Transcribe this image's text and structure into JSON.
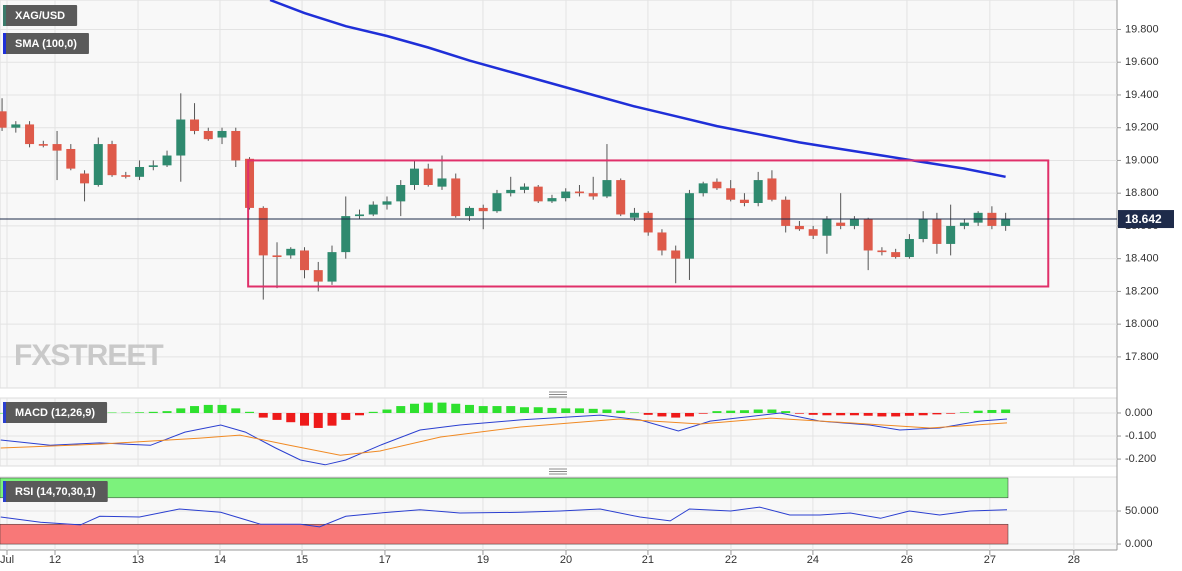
{
  "chart_data": [
    {
      "type": "candlestick",
      "title": "XAG/USD",
      "watermark": "FXSTREET",
      "grid": true,
      "up_color": "#2f8a6f",
      "down_color": "#de5a4a",
      "x": [
        0,
        1,
        2,
        3,
        4,
        5,
        6,
        7,
        8,
        9,
        10,
        11,
        12,
        13,
        14,
        15,
        16,
        17,
        18,
        19,
        20,
        21,
        22,
        23,
        24,
        25,
        26,
        27,
        28,
        29,
        30,
        31,
        32,
        33,
        34,
        35,
        36,
        37,
        38,
        39,
        40,
        41,
        42,
        43,
        44,
        45,
        46,
        47,
        48,
        49,
        50,
        51,
        52,
        53,
        54,
        55,
        56,
        57,
        58,
        59,
        60,
        61,
        62,
        63,
        64,
        65,
        66,
        67,
        68,
        69,
        70,
        71,
        72,
        73
      ],
      "open": [
        19.3,
        19.2,
        19.22,
        19.1,
        19.1,
        19.07,
        18.92,
        18.85,
        19.1,
        18.91,
        18.9,
        18.96,
        18.97,
        19.03,
        19.25,
        19.18,
        19.14,
        19.18,
        19.01,
        18.71,
        18.42,
        18.42,
        18.45,
        18.33,
        18.26,
        18.44,
        18.66,
        18.67,
        18.73,
        18.75,
        18.85,
        18.95,
        18.84,
        18.89,
        18.66,
        18.71,
        18.69,
        18.8,
        18.82,
        18.84,
        18.75,
        18.77,
        18.81,
        18.8,
        18.78,
        18.88,
        18.65,
        18.68,
        18.56,
        18.45,
        18.4,
        18.8,
        18.87,
        18.83,
        18.76,
        18.74,
        18.89,
        18.76,
        18.6,
        18.58,
        18.54,
        18.62,
        18.6,
        18.64,
        18.45,
        18.44,
        18.41,
        18.52,
        18.64,
        18.49,
        18.6,
        18.62,
        18.68,
        18.6
      ],
      "high": [
        19.38,
        19.24,
        19.24,
        19.12,
        19.18,
        19.1,
        18.94,
        19.14,
        19.12,
        18.93,
        19.0,
        19.0,
        19.06,
        19.41,
        19.35,
        19.2,
        19.2,
        19.2,
        19.02,
        18.72,
        18.5,
        18.47,
        18.47,
        18.38,
        18.48,
        18.78,
        18.7,
        18.75,
        18.78,
        18.88,
        19.0,
        18.98,
        19.03,
        18.92,
        18.72,
        18.73,
        18.82,
        18.9,
        18.86,
        18.85,
        18.79,
        18.83,
        18.85,
        18.9,
        19.1,
        18.89,
        18.71,
        18.69,
        18.58,
        18.48,
        18.82,
        18.87,
        18.89,
        18.88,
        18.8,
        18.93,
        18.94,
        18.78,
        18.63,
        18.6,
        18.66,
        18.8,
        18.66,
        18.65,
        18.47,
        18.46,
        18.55,
        18.69,
        18.68,
        18.73,
        18.64,
        18.69,
        18.72,
        18.68
      ],
      "low": [
        19.18,
        19.17,
        19.08,
        19.08,
        18.88,
        18.94,
        18.75,
        18.84,
        18.9,
        18.89,
        18.88,
        18.94,
        18.96,
        18.87,
        19.16,
        19.12,
        19.1,
        18.96,
        18.7,
        18.15,
        18.22,
        18.4,
        18.28,
        18.2,
        18.24,
        18.4,
        18.64,
        18.66,
        18.7,
        18.66,
        18.82,
        18.84,
        18.82,
        18.65,
        18.63,
        18.58,
        18.68,
        18.78,
        18.8,
        18.74,
        18.74,
        18.75,
        18.78,
        18.76,
        18.77,
        18.66,
        18.63,
        18.54,
        18.42,
        18.25,
        18.27,
        18.78,
        18.82,
        18.75,
        18.72,
        18.72,
        18.75,
        18.56,
        18.57,
        18.52,
        18.43,
        18.58,
        18.58,
        18.33,
        18.42,
        18.4,
        18.4,
        18.5,
        18.43,
        18.42,
        18.58,
        18.6,
        18.58,
        18.57
      ],
      "close": [
        19.2,
        19.22,
        19.1,
        19.09,
        19.06,
        18.95,
        18.86,
        19.1,
        18.91,
        18.9,
        18.96,
        18.97,
        19.03,
        19.25,
        19.18,
        19.13,
        19.18,
        19.0,
        18.71,
        18.42,
        18.41,
        18.46,
        18.33,
        18.26,
        18.44,
        18.66,
        18.67,
        18.73,
        18.75,
        18.85,
        18.95,
        18.85,
        18.89,
        18.66,
        18.71,
        18.69,
        18.8,
        18.82,
        18.84,
        18.75,
        18.77,
        18.81,
        18.8,
        18.78,
        18.88,
        18.67,
        18.68,
        18.56,
        18.45,
        18.4,
        18.8,
        18.86,
        18.83,
        18.76,
        18.74,
        18.88,
        18.76,
        18.6,
        18.58,
        18.54,
        18.64,
        18.6,
        18.64,
        18.45,
        18.44,
        18.41,
        18.52,
        18.64,
        18.49,
        18.6,
        18.62,
        18.68,
        18.6,
        18.64
      ],
      "overlays": [
        {
          "name": "SMA (100,0)",
          "color": "#1f2fd8",
          "x": [
            19.5,
            22,
            25,
            28,
            31,
            34,
            37,
            40,
            43,
            46,
            49,
            52,
            55,
            58,
            61,
            64,
            67,
            70,
            73
          ],
          "values": [
            19.98,
            19.9,
            19.82,
            19.76,
            19.69,
            19.61,
            19.54,
            19.47,
            19.4,
            19.33,
            19.27,
            19.21,
            19.16,
            19.11,
            19.07,
            19.03,
            18.99,
            18.95,
            18.9
          ]
        }
      ],
      "range_box": {
        "x": [
          17.9,
          76.1
        ],
        "y": [
          18.23,
          19.0
        ],
        "color": "#e0306a"
      },
      "last_price": 18.642,
      "xlim": [
        -0.15,
        81.1
      ],
      "ylim": [
        17.61,
        19.98
      ],
      "yticks": [
        {
          "value": 17.8,
          "label": "17.800"
        },
        {
          "value": 18.0,
          "label": "18.000"
        },
        {
          "value": 18.2,
          "label": "18.200"
        },
        {
          "value": 18.4,
          "label": "18.400"
        },
        {
          "value": 18.6,
          "label": "18.600"
        },
        {
          "value": 18.8,
          "label": "18.800"
        },
        {
          "value": 19.0,
          "label": "19.000"
        },
        {
          "value": 19.2,
          "label": "19.200"
        },
        {
          "value": 19.4,
          "label": "19.400"
        },
        {
          "value": 19.6,
          "label": "19.600"
        },
        {
          "value": 19.8,
          "label": "19.800"
        }
      ],
      "xticks": [
        {
          "value": 0.36,
          "label": "Jul"
        },
        {
          "value": 3.85,
          "label": "12"
        },
        {
          "value": 9.89,
          "label": "13"
        },
        {
          "value": 15.85,
          "label": "14"
        },
        {
          "value": 21.82,
          "label": "15"
        },
        {
          "value": 27.85,
          "label": "17"
        },
        {
          "value": 34.98,
          "label": "19"
        },
        {
          "value": 41.02,
          "label": "20"
        },
        {
          "value": 46.98,
          "label": "21"
        },
        {
          "value": 53.02,
          "label": "22"
        },
        {
          "value": 58.98,
          "label": "24"
        },
        {
          "value": 65.82,
          "label": "26"
        },
        {
          "value": 71.85,
          "label": "27"
        },
        {
          "value": 77.96,
          "label": "28"
        }
      ]
    },
    {
      "type": "macd",
      "title": "MACD (12,26,9)",
      "grid": true,
      "up_color": "#2ee02e",
      "down_color": "#ee1a1a",
      "histogram": [
        0,
        0,
        0,
        0,
        0,
        0,
        0,
        0,
        0.002,
        0.002,
        0.003,
        0.005,
        0.008,
        0.02,
        0.03,
        0.035,
        0.035,
        0.02,
        0.005,
        -0.02,
        -0.03,
        -0.04,
        -0.055,
        -0.065,
        -0.055,
        -0.03,
        -0.01,
        0.005,
        0.015,
        0.03,
        0.04,
        0.045,
        0.045,
        0.04,
        0.035,
        0.03,
        0.03,
        0.03,
        0.025,
        0.025,
        0.022,
        0.02,
        0.02,
        0.018,
        0.015,
        0.01,
        0.002,
        -0.008,
        -0.015,
        -0.02,
        -0.015,
        -0.003,
        0.008,
        0.01,
        0.012,
        0.015,
        0.015,
        0.008,
        -0.003,
        -0.008,
        -0.01,
        -0.01,
        -0.01,
        -0.012,
        -0.015,
        -0.015,
        -0.012,
        -0.01,
        -0.006,
        -0.003,
        0.003,
        0.01,
        0.013,
        0.015
      ],
      "lines": [
        {
          "color": "#2b3fd0",
          "x": [
            -0.1,
            3.5,
            7.1,
            10.8,
            13.3,
            15.9,
            17.7,
            19.9,
            21.7,
            23.5,
            25,
            27.5,
            30.4,
            33.3,
            37.7,
            43.5,
            46.4,
            49.2,
            51.5,
            56.6,
            59.5,
            63.1,
            65.3,
            68.2,
            71.1,
            73.1
          ],
          "values": [
            -0.117,
            -0.14,
            -0.13,
            -0.14,
            -0.083,
            -0.052,
            -0.083,
            -0.152,
            -0.204,
            -0.225,
            -0.204,
            -0.14,
            -0.074,
            -0.052,
            -0.03,
            -0.009,
            -0.03,
            -0.078,
            -0.035,
            0,
            -0.035,
            -0.052,
            -0.074,
            -0.065,
            -0.035,
            -0.026
          ]
        },
        {
          "color": "#f08a24",
          "x": [
            -0.1,
            7.1,
            14.4,
            17.3,
            20.9,
            24.6,
            27.5,
            31.9,
            37.7,
            44.9,
            50.8,
            55.9,
            61.7,
            67.5,
            73.1
          ],
          "values": [
            -0.152,
            -0.135,
            -0.109,
            -0.096,
            -0.14,
            -0.183,
            -0.165,
            -0.104,
            -0.061,
            -0.026,
            -0.048,
            -0.022,
            -0.043,
            -0.065,
            -0.043
          ]
        }
      ],
      "ylim": [
        -0.23,
        0.065
      ],
      "yticks": [
        {
          "value": 0,
          "label": "0.000"
        },
        {
          "value": -0.1,
          "label": "-0.100"
        },
        {
          "value": -0.2,
          "label": "-0.200"
        }
      ]
    },
    {
      "type": "rsi",
      "title": "RSI (14,70,30,1)",
      "grid": true,
      "bands": [
        {
          "from": 70,
          "to": 100,
          "color": "#7cf27c"
        },
        {
          "from": 0,
          "to": 30,
          "color": "#f87878"
        }
      ],
      "lines": [
        {
          "color": "#2b3fd0",
          "x": [
            -0.1,
            2.8,
            5.7,
            7.1,
            10,
            12.9,
            15.9,
            18.8,
            21.7,
            23.1,
            25,
            27.5,
            30.4,
            33.3,
            37.7,
            40.6,
            43.5,
            46.4,
            48.6,
            50,
            53,
            55.1,
            57.3,
            59.5,
            61.7,
            63.9,
            66,
            68.2,
            70.4,
            73.1
          ],
          "values": [
            41,
            33,
            29,
            42,
            41,
            53,
            48,
            30,
            30,
            26,
            42,
            47,
            52,
            47,
            48,
            50,
            53,
            41,
            35,
            53,
            50,
            56,
            44,
            44,
            47,
            39,
            50,
            44,
            50,
            52
          ]
        }
      ],
      "ylim": [
        -9,
        101.5
      ],
      "yticks": [
        {
          "value": 50,
          "label": "50.000"
        },
        {
          "value": 0,
          "label": "0.000"
        }
      ]
    }
  ]
}
